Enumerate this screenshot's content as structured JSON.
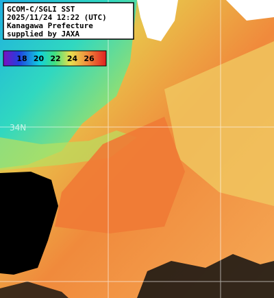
{
  "header": {
    "lines": [
      "GCOM-C/SGLI SST",
      "2025/11/24 12:22 (UTC)",
      "Kanagawa Prefecture",
      "supplied by JAXA"
    ]
  },
  "legend": {
    "ticks": [
      18,
      20,
      22,
      24,
      26
    ]
  },
  "map": {
    "lat_label": "34N"
  }
}
